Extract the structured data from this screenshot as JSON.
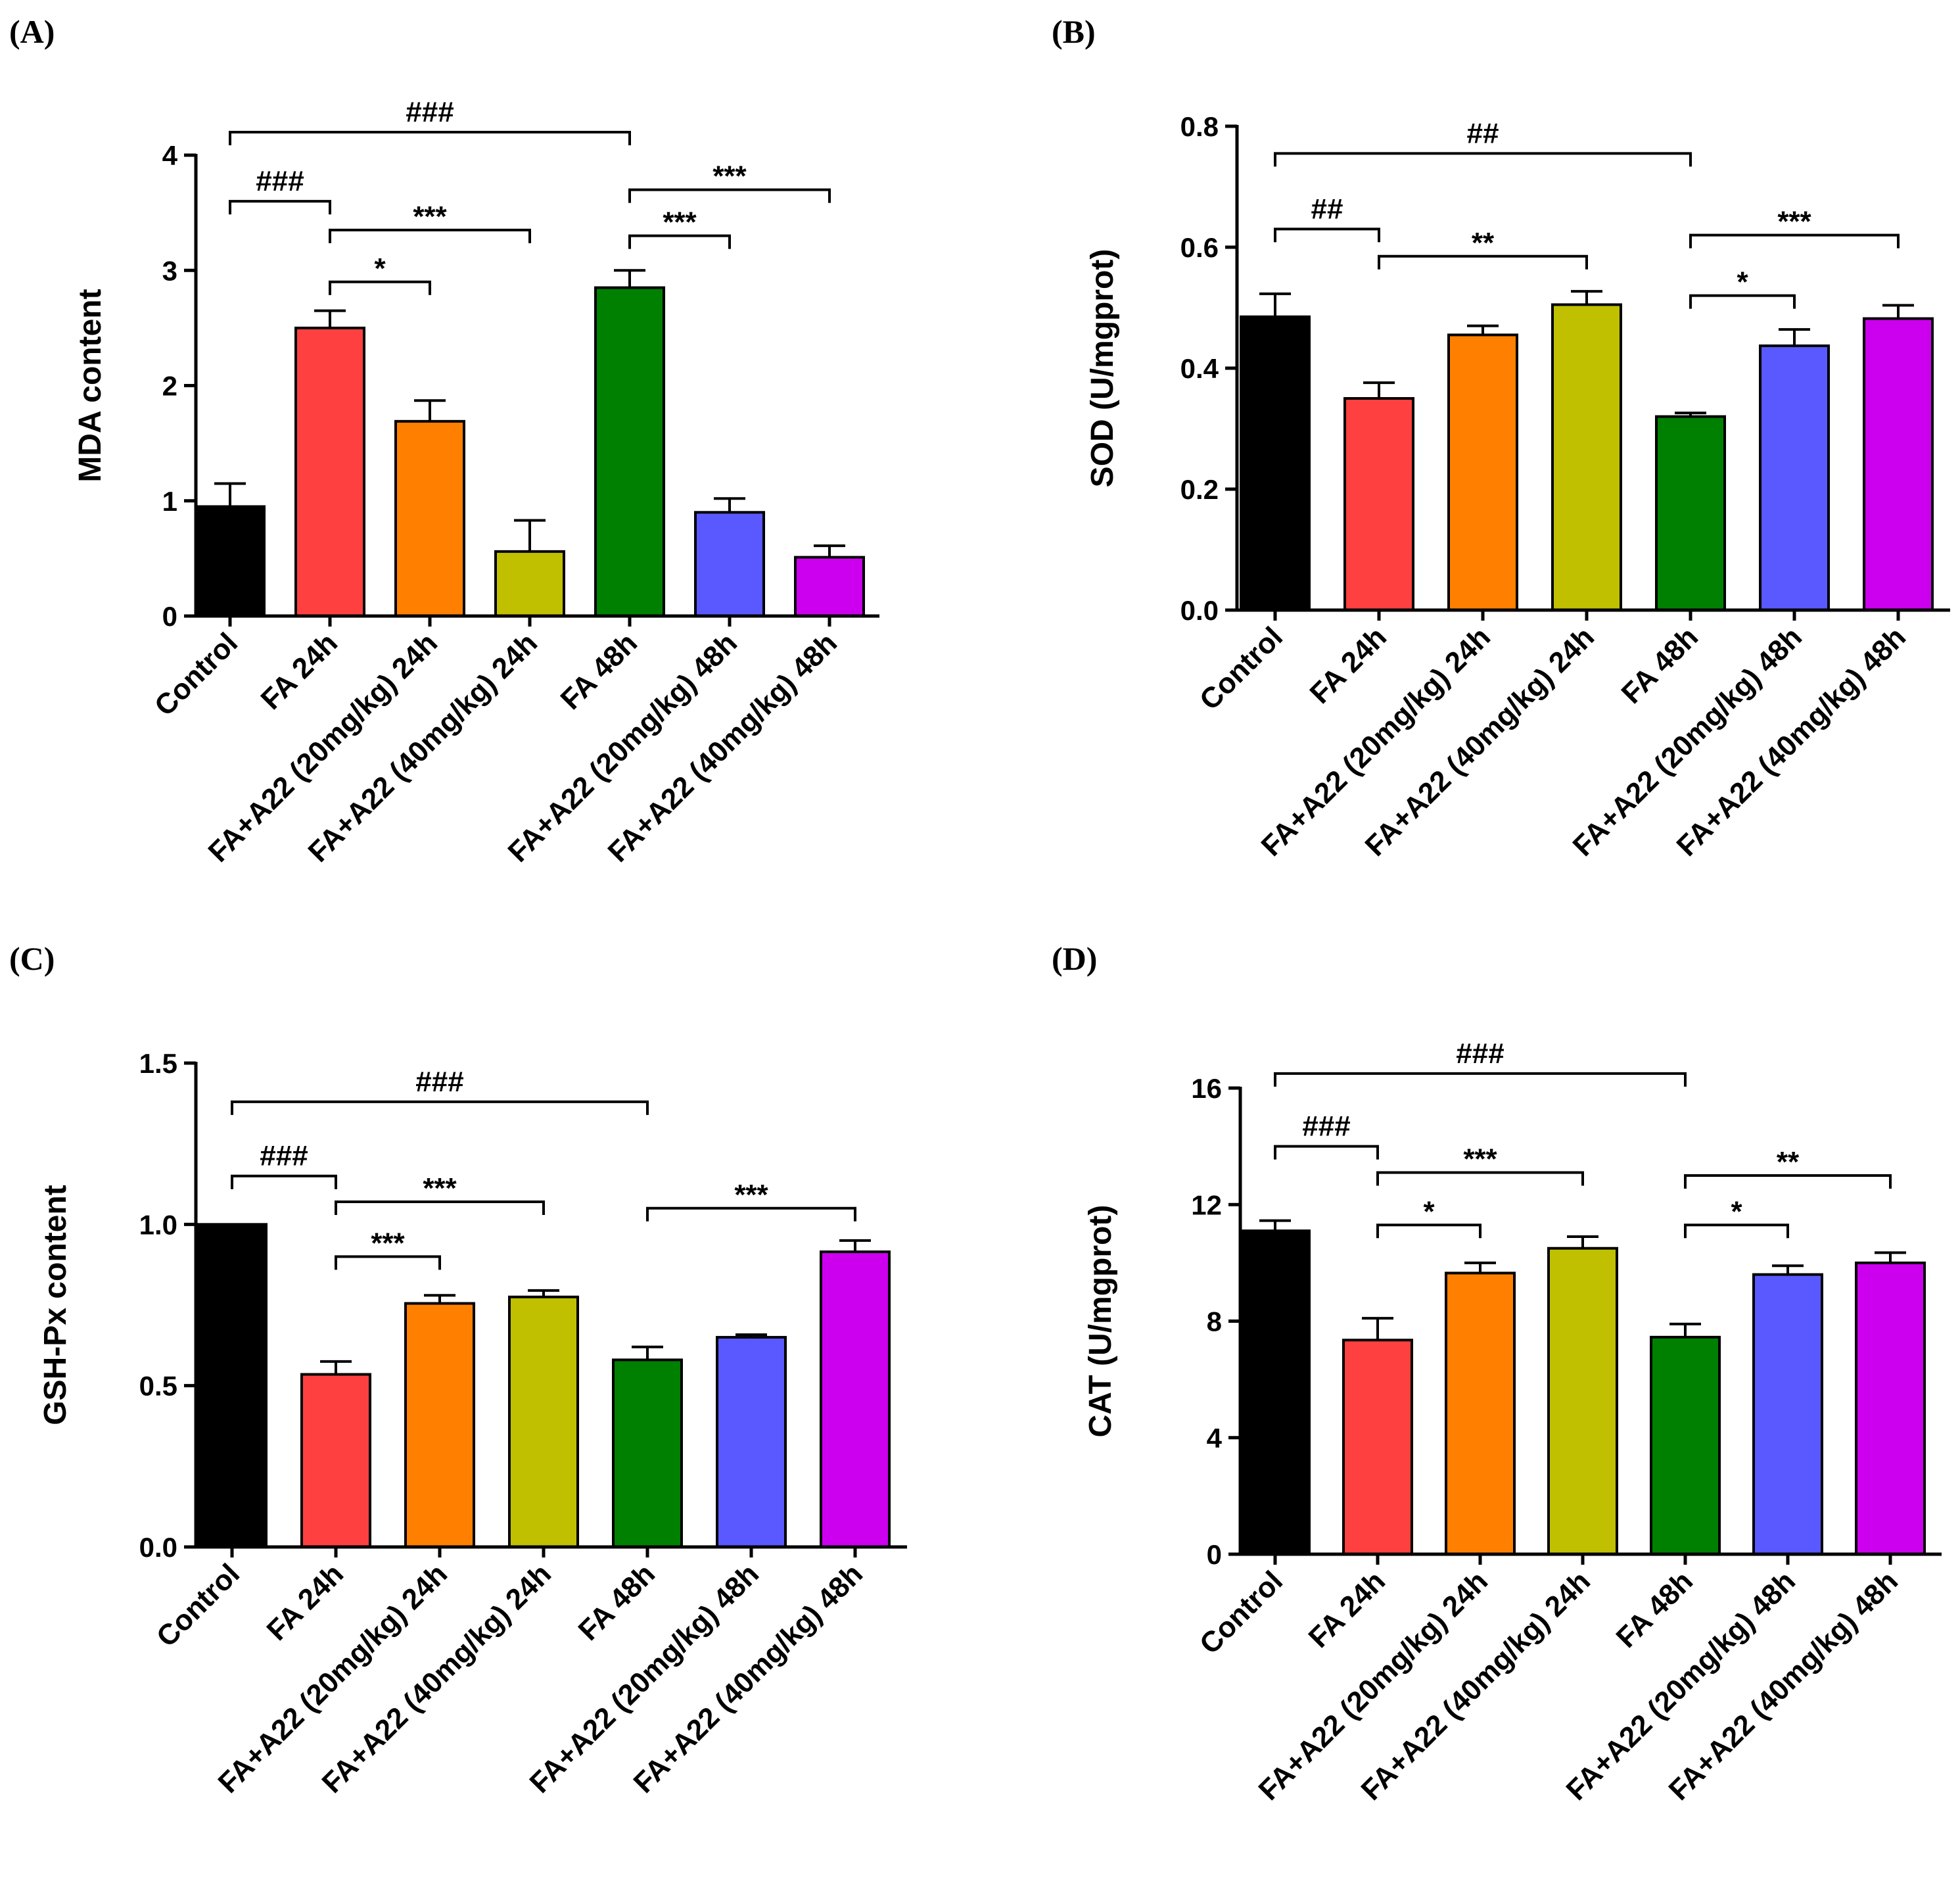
{
  "categories": [
    "Control",
    "FA 24h",
    "FA+A22 (20mg/kg) 24h",
    "FA+A22 (40mg/kg) 24h",
    "FA 48h",
    "FA+A22 (20mg/kg) 48h",
    "FA+A22 (40mg/kg) 48h"
  ],
  "colors": [
    "#000000",
    "#ff4040",
    "#ff8000",
    "#c0c000",
    "#008000",
    "#5959ff",
    "#cc00ee"
  ],
  "chart_data": [
    {
      "type": "bar",
      "panel": "(A)",
      "ylabel": "MDA content",
      "ylim": [
        0,
        4
      ],
      "yticks": [
        0,
        1,
        2,
        3,
        4
      ],
      "ytick_labels": [
        "0",
        "1",
        "2",
        "3",
        "4"
      ],
      "values": [
        0.95,
        2.5,
        1.69,
        0.56,
        2.85,
        0.9,
        0.51
      ],
      "errors": [
        0.2,
        0.15,
        0.18,
        0.27,
        0.15,
        0.12,
        0.1
      ],
      "brackets": [
        {
          "from": 0,
          "to": 4,
          "y": 4.2,
          "label": "###"
        },
        {
          "from": 0,
          "to": 1,
          "y": 3.6,
          "label": "###"
        },
        {
          "from": 1,
          "to": 3,
          "y": 3.35,
          "label": "***"
        },
        {
          "from": 1,
          "to": 2,
          "y": 2.9,
          "label": "*"
        },
        {
          "from": 4,
          "to": 6,
          "y": 3.7,
          "label": "***"
        },
        {
          "from": 4,
          "to": 5,
          "y": 3.3,
          "label": "***"
        }
      ]
    },
    {
      "type": "bar",
      "panel": "(B)",
      "ylabel": "SOD (U/mgprot)",
      "ylim": [
        0,
        0.8
      ],
      "yticks": [
        0,
        0.2,
        0.4,
        0.6,
        0.8
      ],
      "ytick_labels": [
        "0.0",
        "0.2",
        "0.4",
        "0.6",
        "0.8"
      ],
      "values": [
        0.485,
        0.35,
        0.455,
        0.505,
        0.32,
        0.437,
        0.482
      ],
      "errors": [
        0.038,
        0.026,
        0.015,
        0.022,
        0.006,
        0.027,
        0.022
      ],
      "brackets": [
        {
          "from": 0,
          "to": 4,
          "y": 0.755,
          "label": "##"
        },
        {
          "from": 0,
          "to": 1,
          "y": 0.63,
          "label": "##"
        },
        {
          "from": 1,
          "to": 3,
          "y": 0.585,
          "label": "**"
        },
        {
          "from": 4,
          "to": 6,
          "y": 0.62,
          "label": "***"
        },
        {
          "from": 4,
          "to": 5,
          "y": 0.52,
          "label": "*"
        }
      ]
    },
    {
      "type": "bar",
      "panel": "(C)",
      "ylabel": "GSH-Px content",
      "ylim": [
        0,
        1.5
      ],
      "yticks": [
        0,
        0.5,
        1.0,
        1.5
      ],
      "ytick_labels": [
        "0.0",
        "0.5",
        "1.0",
        "1.5"
      ],
      "values": [
        1.0,
        0.535,
        0.755,
        0.775,
        0.58,
        0.65,
        0.915
      ],
      "errors": [
        0.0,
        0.04,
        0.025,
        0.02,
        0.04,
        0.008,
        0.035
      ],
      "brackets": [
        {
          "from": 0,
          "to": 4,
          "y": 1.38,
          "label": "###"
        },
        {
          "from": 0,
          "to": 1,
          "y": 1.15,
          "label": "###"
        },
        {
          "from": 1,
          "to": 3,
          "y": 1.07,
          "label": "***"
        },
        {
          "from": 1,
          "to": 2,
          "y": 0.9,
          "label": "***"
        },
        {
          "from": 4,
          "to": 6,
          "y": 1.05,
          "label": "***"
        }
      ]
    },
    {
      "type": "bar",
      "panel": "(D)",
      "ylabel": "CAT (U/mgprot)",
      "ylim": [
        0,
        16
      ],
      "yticks": [
        0,
        4,
        8,
        12,
        16
      ],
      "ytick_labels": [
        "0",
        "4",
        "8",
        "12",
        "16"
      ],
      "values": [
        11.1,
        7.35,
        9.65,
        10.5,
        7.45,
        9.6,
        10.0
      ],
      "errors": [
        0.35,
        0.75,
        0.35,
        0.4,
        0.45,
        0.3,
        0.35
      ],
      "brackets": [
        {
          "from": 0,
          "to": 4,
          "y": 16.5,
          "label": "###"
        },
        {
          "from": 0,
          "to": 1,
          "y": 14.0,
          "label": "###"
        },
        {
          "from": 1,
          "to": 3,
          "y": 13.1,
          "label": "***"
        },
        {
          "from": 1,
          "to": 2,
          "y": 11.3,
          "label": "*"
        },
        {
          "from": 4,
          "to": 6,
          "y": 13.0,
          "label": "**"
        },
        {
          "from": 4,
          "to": 5,
          "y": 11.3,
          "label": "*"
        }
      ]
    }
  ]
}
